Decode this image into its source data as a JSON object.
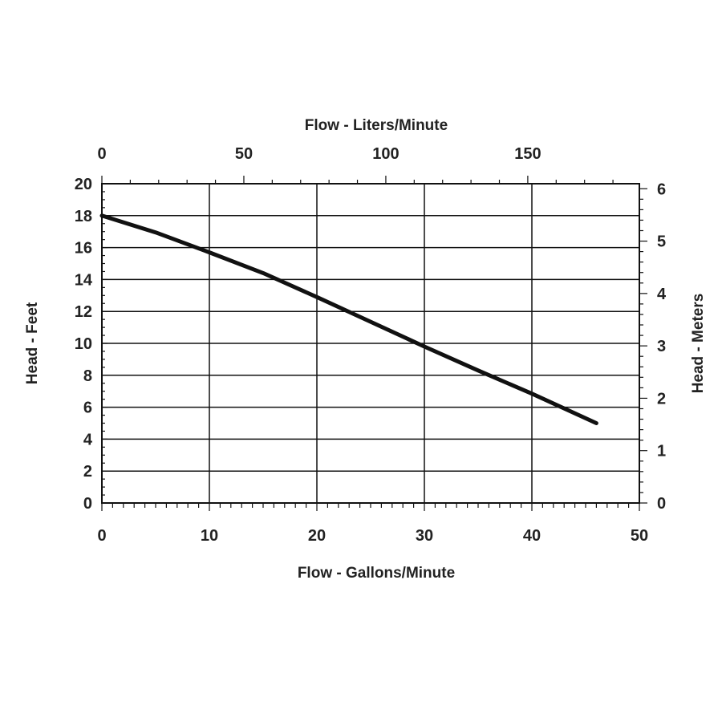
{
  "chart_data": {
    "type": "line",
    "title": "",
    "xlabel": "Flow - Gallons/Minute",
    "ylabel": "Head - Feet",
    "x2label": "Flow - Liters/Minute",
    "y2label": "Head - Meters",
    "xlim": [
      0,
      50
    ],
    "ylim": [
      0,
      20
    ],
    "x2lim": [
      0,
      189.3
    ],
    "y2lim": [
      0,
      6.096
    ],
    "xticks": [
      0,
      10,
      20,
      30,
      40,
      50
    ],
    "yticks": [
      0,
      2,
      4,
      6,
      8,
      10,
      12,
      14,
      16,
      18,
      20
    ],
    "x2ticks": [
      0,
      50,
      100,
      150
    ],
    "y2ticks": [
      0,
      1,
      2,
      3,
      4,
      5,
      6
    ],
    "grid": true,
    "line_color": "#111111",
    "series": [
      {
        "x": [
          0,
          5,
          10,
          15,
          20,
          25,
          30,
          35,
          40,
          46
        ],
        "y": [
          18.0,
          16.95,
          15.7,
          14.4,
          12.9,
          11.35,
          9.8,
          8.3,
          6.85,
          5.0
        ]
      }
    ]
  }
}
